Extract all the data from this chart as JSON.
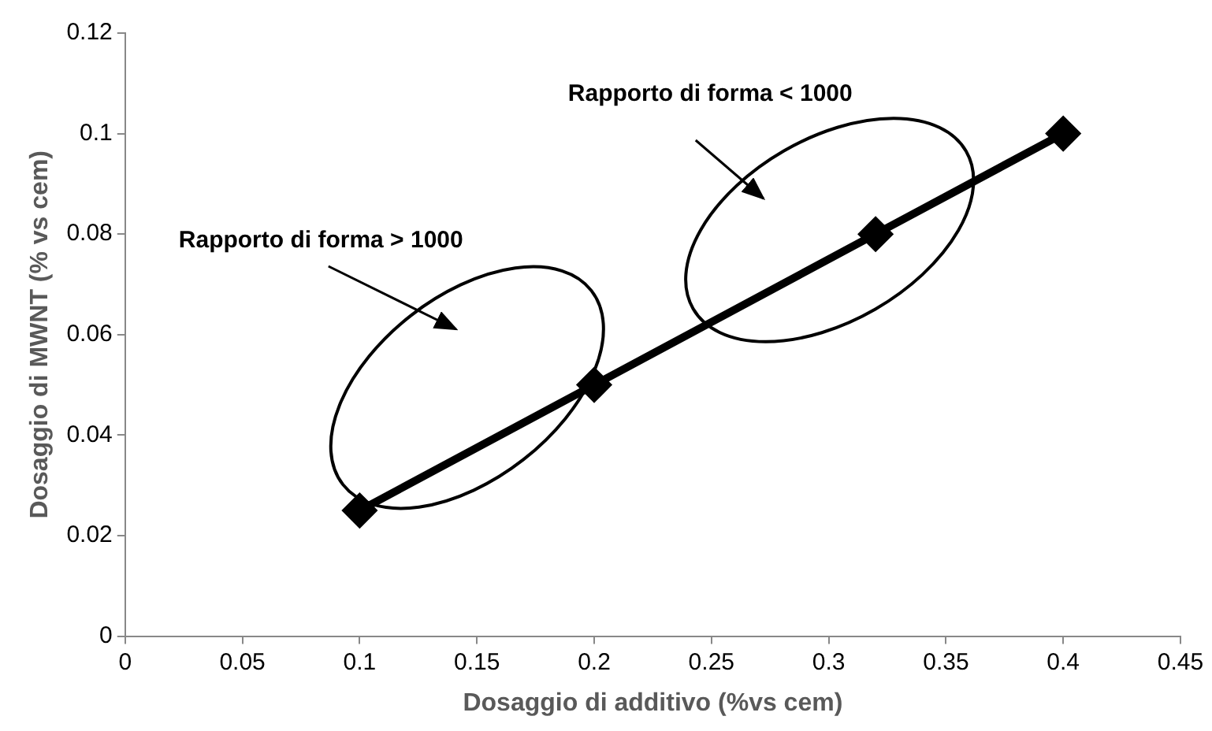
{
  "chart_data": {
    "type": "line",
    "xlabel": "Dosaggio di additivo (%vs cem)",
    "ylabel": "Dosaggio di MWNT (% vs cem)",
    "x": [
      0.1,
      0.2,
      0.32,
      0.4
    ],
    "series": [
      {
        "color": "#000000",
        "values": [
          0.025,
          0.05,
          0.08,
          0.1
        ]
      }
    ],
    "xlim": [
      0,
      0.45
    ],
    "xticks": [
      0,
      0.05,
      0.1,
      0.15,
      0.2,
      0.25,
      0.3,
      0.35,
      0.4,
      0.45
    ],
    "ylim": [
      0,
      0.12
    ],
    "yticks": [
      0,
      0.02,
      0.04,
      0.06,
      0.08,
      0.1,
      0.12
    ],
    "marker": "diamond",
    "line_style": "solid",
    "grid": false,
    "legend": false,
    "annotations": [
      "Rapporto di forma > 1000",
      "Rapporto di forma < 1000"
    ]
  }
}
